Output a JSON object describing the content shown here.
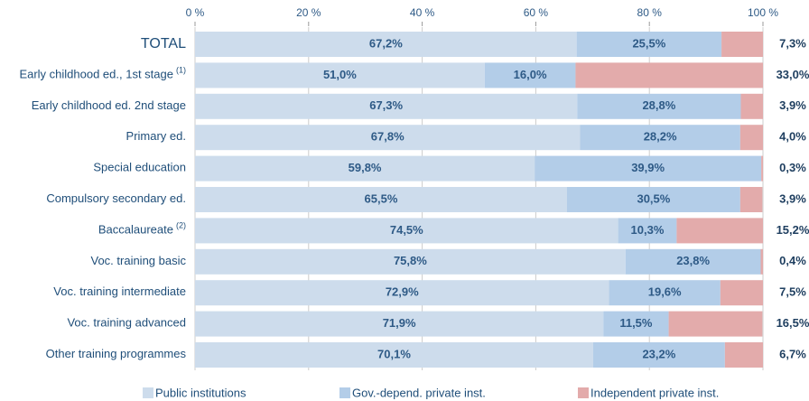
{
  "chart_data": {
    "type": "stacked-bar-horizontal",
    "categories": [
      "TOTAL",
      "Early childhood ed., 1st stage",
      "Early childhood ed. 2nd stage",
      "Primary ed.",
      "Special education",
      "Compulsory secondary ed.",
      "Baccalaureate",
      "Voc. training basic",
      "Voc. training intermediate",
      "Voc. training advanced",
      "Other training programmes"
    ],
    "category_notes": [
      null,
      "(1)",
      null,
      null,
      null,
      null,
      "(2)",
      null,
      null,
      null,
      null
    ],
    "series": [
      {
        "name": "Public institutions",
        "color": "#cddcec",
        "values": [
          67.2,
          51.0,
          67.3,
          67.8,
          59.8,
          65.5,
          74.5,
          75.8,
          72.9,
          71.9,
          70.1
        ],
        "value_labels": [
          "67,2%",
          "51,0%",
          "67,3%",
          "67,8%",
          "59,8%",
          "65,5%",
          "74,5%",
          "75,8%",
          "72,9%",
          "71,9%",
          "70,1%"
        ]
      },
      {
        "name": "Gov.-depend. private inst.",
        "color": "#b3cde8",
        "values": [
          25.5,
          16.0,
          28.8,
          28.2,
          39.9,
          30.5,
          10.3,
          23.8,
          19.6,
          11.5,
          23.2
        ],
        "value_labels": [
          "25,5%",
          "16,0%",
          "28,8%",
          "28,2%",
          "39,9%",
          "30,5%",
          "10,3%",
          "23,8%",
          "19,6%",
          "11,5%",
          "23,2%"
        ]
      },
      {
        "name": "Independent private inst.",
        "color": "#e3abab",
        "values": [
          7.3,
          33.0,
          3.9,
          4.0,
          0.3,
          3.9,
          15.2,
          0.4,
          7.5,
          16.5,
          6.7
        ],
        "value_labels": [
          "7,3%",
          "33,0%",
          "3,9%",
          "4,0%",
          "0,3%",
          "3,9%",
          "15,2%",
          "0,4%",
          "7,5%",
          "16,5%",
          "6,7%"
        ]
      }
    ],
    "xlim": [
      0,
      100
    ],
    "xticks": [
      {
        "value": 0,
        "label": "0 %"
      },
      {
        "value": 20,
        "label": "20 %"
      },
      {
        "value": 40,
        "label": "40 %"
      },
      {
        "value": 60,
        "label": "60 %"
      },
      {
        "value": 80,
        "label": "80 %"
      },
      {
        "value": 100,
        "label": "100 %"
      }
    ],
    "grid": true
  }
}
